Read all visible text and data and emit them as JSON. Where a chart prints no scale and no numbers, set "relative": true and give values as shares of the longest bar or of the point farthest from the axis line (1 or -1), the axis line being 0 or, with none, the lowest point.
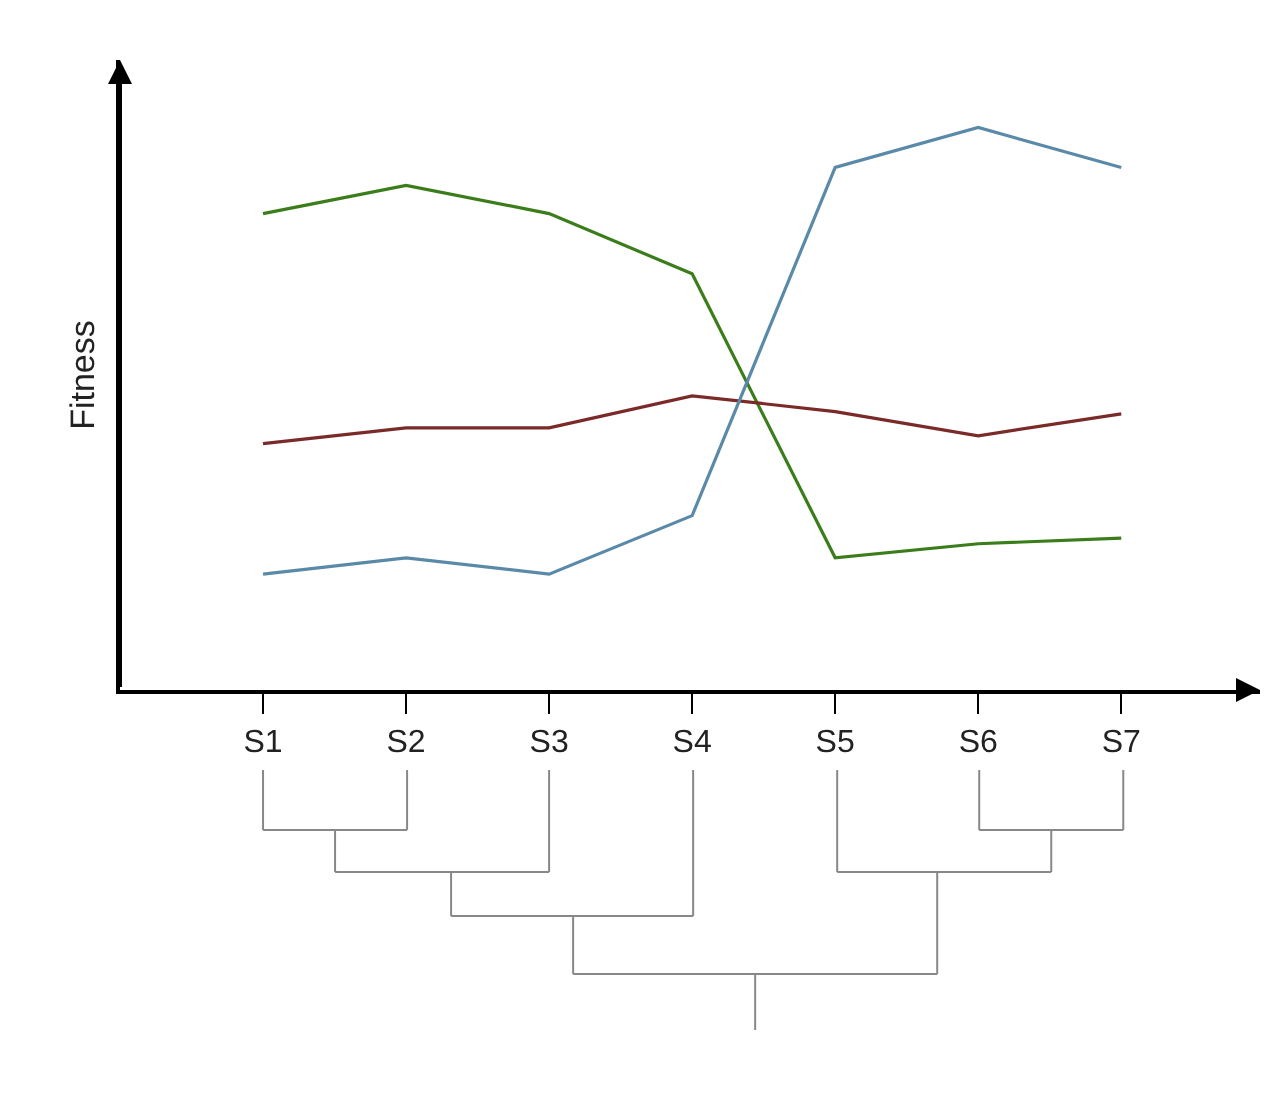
{
  "chart_data": {
    "type": "line",
    "relative": true,
    "ylabel": "Fitness",
    "categories": [
      "S1",
      "S2",
      "S3",
      "S4",
      "S5",
      "S6",
      "S7"
    ],
    "series": [
      {
        "color": "#3a7d1a",
        "values": [
          0.847,
          0.897,
          0.847,
          0.74,
          0.235,
          0.26,
          0.27
        ]
      },
      {
        "color": "#7b2a2a",
        "values": [
          0.438,
          0.466,
          0.466,
          0.523,
          0.495,
          0.452,
          0.491
        ]
      },
      {
        "color": "#5a8aa8",
        "values": [
          0.206,
          0.235,
          0.206,
          0.31,
          0.929,
          1.0,
          0.929
        ]
      }
    ],
    "marker": "none",
    "line_style": "solid"
  }
}
